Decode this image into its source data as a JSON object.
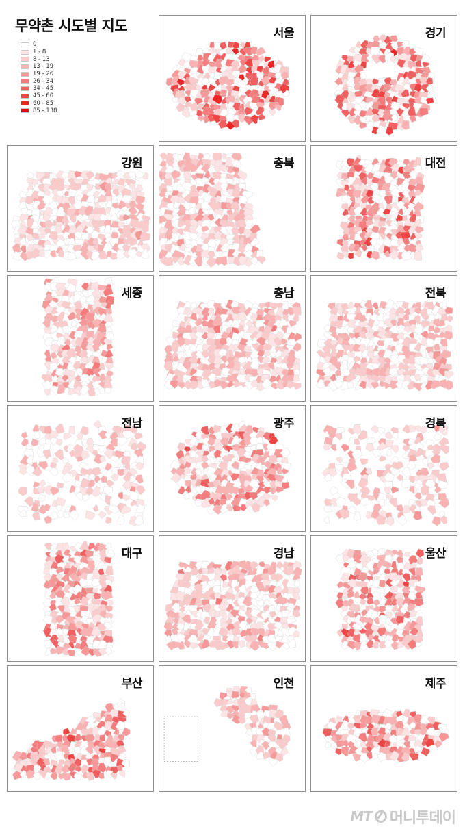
{
  "title": "무약촌 시도별 지도",
  "legend": {
    "items": [
      {
        "label": "0",
        "color": "#ffffff"
      },
      {
        "label": "1 - 8",
        "color": "#fde3e3"
      },
      {
        "label": "8 - 13",
        "color": "#fbcaca"
      },
      {
        "label": "13 - 19",
        "color": "#f9b1b1"
      },
      {
        "label": "19 - 26",
        "color": "#f79898"
      },
      {
        "label": "26 - 34",
        "color": "#f47c7c"
      },
      {
        "label": "34 - 45",
        "color": "#f16060"
      },
      {
        "label": "45 - 60",
        "color": "#ee4444"
      },
      {
        "label": "60 - 85",
        "color": "#ea2727"
      },
      {
        "label": "85 - 138",
        "color": "#e60a0a"
      }
    ]
  },
  "regions": [
    {
      "name": "서울",
      "shape": "round",
      "intensity": 0.75
    },
    {
      "name": "경기",
      "shape": "ring",
      "intensity": 0.65
    },
    {
      "name": "강원",
      "shape": "wide",
      "intensity": 0.25
    },
    {
      "name": "충북",
      "shape": "diag",
      "intensity": 0.3
    },
    {
      "name": "대전",
      "shape": "block",
      "intensity": 0.6
    },
    {
      "name": "세종",
      "shape": "tall",
      "intensity": 0.4
    },
    {
      "name": "충남",
      "shape": "wide",
      "intensity": 0.35
    },
    {
      "name": "전북",
      "shape": "wide",
      "intensity": 0.3
    },
    {
      "name": "전남",
      "shape": "scatter",
      "intensity": 0.25
    },
    {
      "name": "광주",
      "shape": "blob",
      "intensity": 0.55
    },
    {
      "name": "경북",
      "shape": "scatter",
      "intensity": 0.3
    },
    {
      "name": "대구",
      "shape": "tall",
      "intensity": 0.5
    },
    {
      "name": "경남",
      "shape": "wide",
      "intensity": 0.35
    },
    {
      "name": "울산",
      "shape": "block",
      "intensity": 0.55
    },
    {
      "name": "부산",
      "shape": "coast",
      "intensity": 0.6
    },
    {
      "name": "인천",
      "shape": "islands",
      "intensity": 0.35
    },
    {
      "name": "제주",
      "shape": "oval",
      "intensity": 0.6
    }
  ],
  "watermark": {
    "prefix": "MT",
    "brand": "머니투데이"
  }
}
